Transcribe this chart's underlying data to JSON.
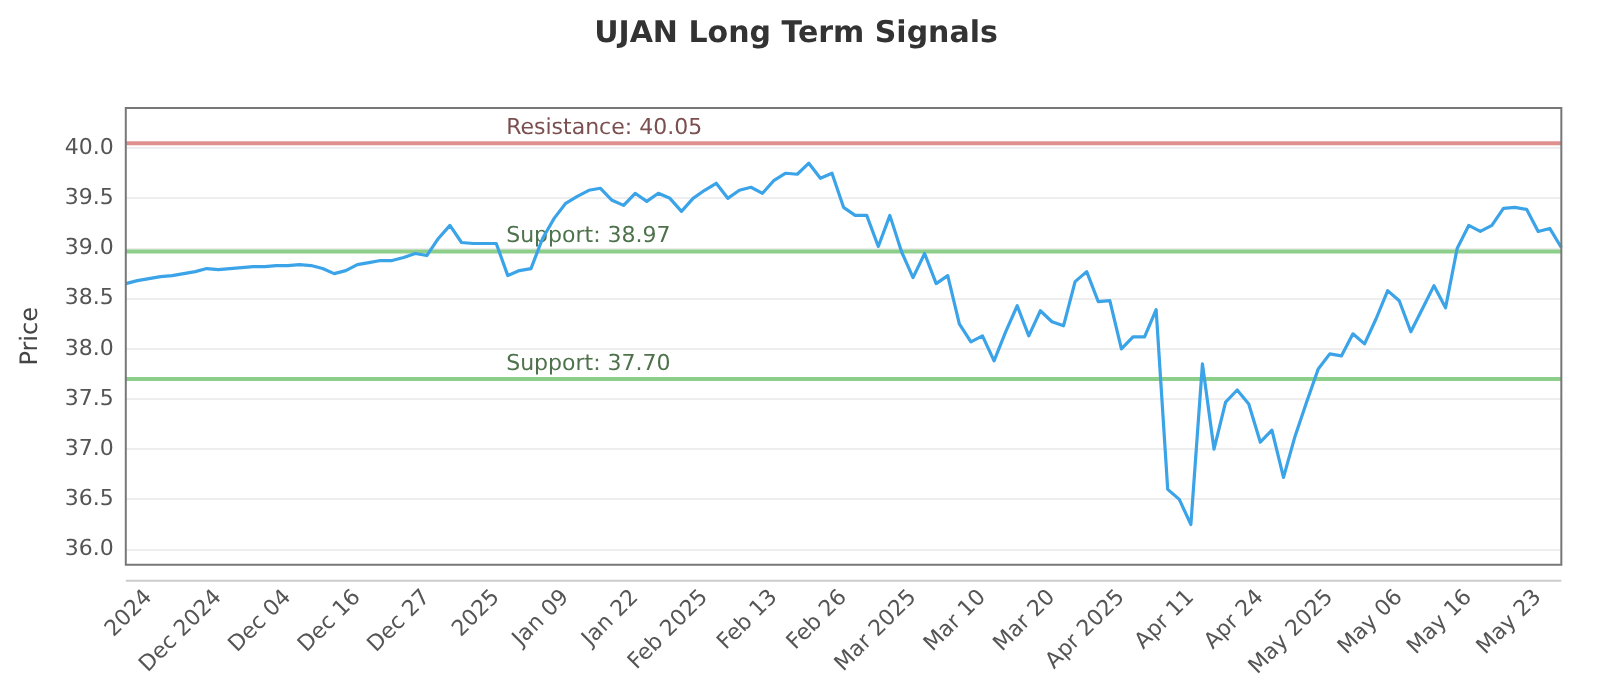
{
  "chart_data": {
    "type": "line",
    "title": "UJAN Long Term Signals",
    "ylabel": "Price",
    "categories": [
      null,
      null,
      "2024",
      null,
      null,
      null,
      null,
      null,
      "Dec 2024",
      null,
      null,
      null,
      null,
      null,
      "Dec 04",
      null,
      null,
      null,
      null,
      null,
      "Dec 16",
      null,
      null,
      null,
      null,
      null,
      "Dec 27",
      null,
      null,
      null,
      null,
      null,
      "2025",
      null,
      null,
      null,
      null,
      null,
      "Jan 09",
      null,
      null,
      null,
      null,
      null,
      "Jan 22",
      null,
      null,
      null,
      null,
      null,
      "Feb 2025",
      null,
      null,
      null,
      null,
      null,
      "Feb 13",
      null,
      null,
      null,
      null,
      null,
      "Feb 26",
      null,
      null,
      null,
      null,
      null,
      "Mar 2025",
      null,
      null,
      null,
      null,
      null,
      "Mar 10",
      null,
      null,
      null,
      null,
      null,
      "Mar 20",
      null,
      null,
      null,
      null,
      null,
      "Apr 2025",
      null,
      null,
      null,
      null,
      null,
      "Apr 11",
      null,
      null,
      null,
      null,
      null,
      "Apr 24",
      null,
      null,
      null,
      null,
      null,
      "May 2025",
      null,
      null,
      null,
      null,
      null,
      "May 06",
      null,
      null,
      null,
      null,
      null,
      "May 16",
      null,
      null,
      null,
      null,
      null,
      "May 23",
      null,
      null
    ],
    "series": [
      {
        "color": "#3ba3e8",
        "values": [
          38.65,
          38.68,
          38.7,
          38.72,
          38.73,
          38.75,
          38.77,
          38.8,
          38.79,
          38.8,
          38.81,
          38.82,
          38.82,
          38.83,
          38.83,
          38.84,
          38.83,
          38.8,
          38.75,
          38.78,
          38.84,
          38.86,
          38.88,
          38.88,
          38.91,
          38.95,
          38.93,
          39.1,
          39.23,
          39.06,
          39.05,
          39.05,
          39.05,
          38.73,
          38.78,
          38.8,
          39.1,
          39.3,
          39.45,
          39.52,
          39.58,
          39.6,
          39.48,
          39.43,
          39.55,
          39.47,
          39.55,
          39.5,
          39.37,
          39.5,
          39.58,
          39.65,
          39.5,
          39.58,
          39.61,
          39.55,
          39.68,
          39.75,
          39.74,
          39.85,
          39.7,
          39.75,
          39.41,
          39.33,
          39.33,
          39.02,
          39.33,
          38.97,
          38.71,
          38.95,
          38.65,
          38.73,
          38.25,
          38.07,
          38.13,
          37.88,
          38.17,
          38.43,
          38.13,
          38.38,
          38.27,
          38.23,
          38.67,
          38.77,
          38.47,
          38.48,
          38.0,
          38.12,
          38.12,
          38.39,
          36.6,
          36.5,
          36.25,
          37.85,
          37.0,
          37.47,
          37.59,
          37.45,
          37.07,
          37.19,
          36.72,
          37.13,
          37.47,
          37.8,
          37.95,
          37.93,
          38.15,
          38.05,
          38.3,
          38.58,
          38.48,
          38.17,
          38.4,
          38.63,
          38.41,
          39.0,
          39.23,
          39.17,
          39.23,
          39.4,
          39.41,
          39.39,
          39.17,
          39.2,
          39.01
        ]
      }
    ],
    "ylim": [
      35.85,
      40.4
    ],
    "yticks": [
      {
        "value": 36,
        "label": "36.0"
      },
      {
        "value": 36.5,
        "label": "36.5"
      },
      {
        "value": 37,
        "label": "37.0"
      },
      {
        "value": 37.5,
        "label": "37.5"
      },
      {
        "value": 38,
        "label": "38.0"
      },
      {
        "value": 38.5,
        "label": "38.5"
      },
      {
        "value": 39,
        "label": "39.0"
      },
      {
        "value": 39.5,
        "label": "39.5"
      },
      {
        "value": 40,
        "label": "40.0"
      }
    ],
    "ref_lines": [
      {
        "axis": "y",
        "value": 40.05,
        "label": "Resistance: 40.05",
        "color": "#e08f8f"
      },
      {
        "axis": "y",
        "value": 38.97,
        "label": "Support: 38.97",
        "color": "#8dcf8a"
      },
      {
        "axis": "y",
        "value": 37.7,
        "label": "Support: 37.70",
        "color": "#8dcf8a"
      }
    ],
    "grid": "y",
    "legend": false,
    "marker": "none",
    "line_style": "solid"
  }
}
